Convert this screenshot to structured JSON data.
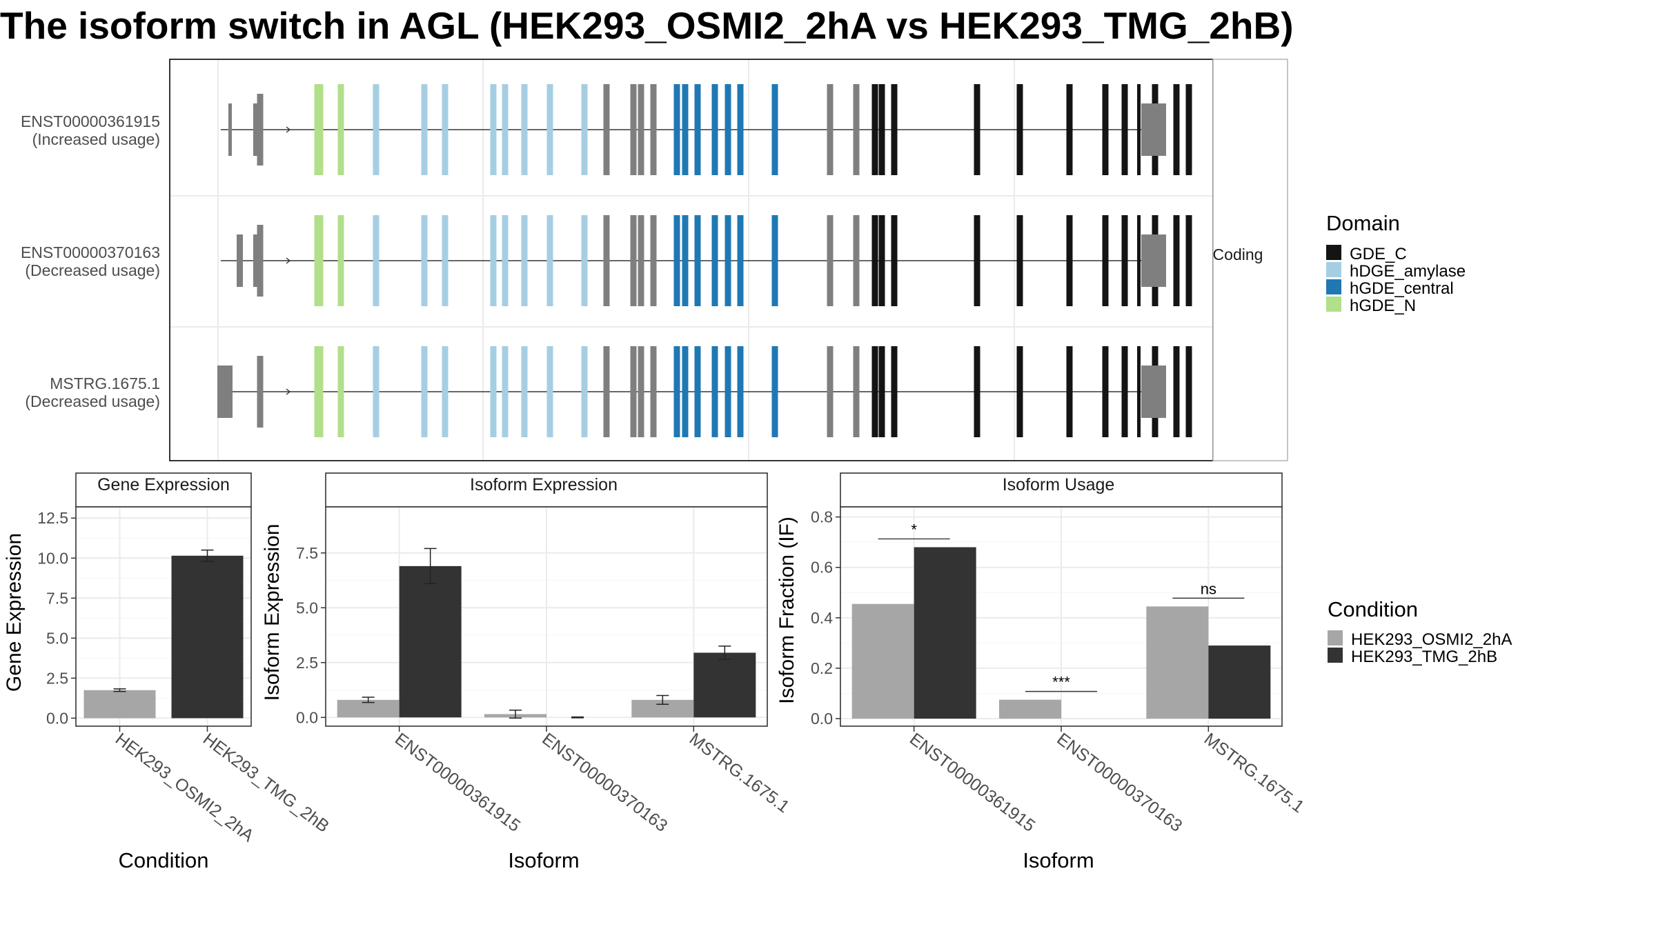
{
  "title": "The isoform switch in AGL (HEK293_OSMI2_2hA vs HEK293_TMG_2hB)",
  "colors": {
    "condition_a": "#a6a6a6",
    "condition_b": "#333333",
    "domain_GDE_C": "#141414",
    "domain_hDGE_amylase": "#a6cee3",
    "domain_hGDE_central": "#1f78b4",
    "domain_hGDE_N": "#b2df8a",
    "non_domain_exon": "#7f7f7f"
  },
  "legends": {
    "domain": {
      "title": "Domain",
      "items": [
        {
          "label": "GDE_C",
          "color_key": "domain_GDE_C"
        },
        {
          "label": "hDGE_amylase",
          "color_key": "domain_hDGE_amylase"
        },
        {
          "label": "hGDE_central",
          "color_key": "domain_hGDE_central"
        },
        {
          "label": "hGDE_N",
          "color_key": "domain_hGDE_N"
        }
      ]
    },
    "condition": {
      "title": "Condition",
      "items": [
        {
          "label": "HEK293_OSMI2_2hA",
          "color_key": "condition_a"
        },
        {
          "label": "HEK293_TMG_2hB",
          "color_key": "condition_b"
        }
      ]
    }
  },
  "chart_data": [
    {
      "type": "gene_structure",
      "strip_label": "Coding",
      "isoforms": [
        {
          "id": "ENST00000361915",
          "label": "ENST00000361915",
          "usage": "(Increased usage)",
          "first_exons": [
            "small",
            "medium"
          ]
        },
        {
          "id": "ENST00000370163",
          "label": "ENST00000370163",
          "usage": "(Decreased usage)",
          "first_exons": [
            "medium-small",
            "medium"
          ]
        },
        {
          "id": "MSTRG.1675.1",
          "label": "MSTRG.1675.1",
          "usage": "(Decreased usage)",
          "first_exons": [
            "wide"
          ]
        }
      ],
      "exon_domains": [
        "grey",
        "green",
        "green",
        "light",
        "light",
        "light",
        "light",
        "light",
        "light",
        "light",
        "light",
        "grey",
        "grey",
        "grey",
        "grey",
        "blue",
        "blue",
        "blue",
        "blue",
        "blue",
        "blue",
        "blue",
        "grey",
        "grey",
        "black",
        "black",
        "black",
        "black",
        "black",
        "black",
        "black",
        "black",
        "black",
        "black",
        "black",
        "black",
        "grey"
      ]
    },
    {
      "type": "bar",
      "title": "Gene Expression",
      "xlabel": "Condition",
      "ylabel": "Gene Expression",
      "categories": [
        "HEK293_OSMI2_2hA",
        "HEK293_TMG_2hB"
      ],
      "values": [
        1.75,
        10.15
      ],
      "errors": [
        0.08,
        0.35
      ],
      "ylim": [
        -0.5,
        13.2
      ],
      "yticks": [
        0.0,
        2.5,
        5.0,
        7.5,
        10.0,
        12.5
      ],
      "ytick_labels": [
        "0.0",
        "2.5",
        "5.0",
        "7.5",
        "10.0",
        "12.5"
      ],
      "grid": true
    },
    {
      "type": "bar",
      "title": "Isoform Expression",
      "xlabel": "Isoform",
      "ylabel": "Isoform Expression",
      "categories": [
        "ENST00000361915",
        "ENST00000370163",
        "MSTRG.1675.1"
      ],
      "series": [
        {
          "name": "HEK293_OSMI2_2hA",
          "values": [
            0.8,
            0.15,
            0.8
          ],
          "errors": [
            0.12,
            0.18,
            0.2
          ]
        },
        {
          "name": "HEK293_TMG_2hB",
          "values": [
            6.9,
            0.0,
            2.95
          ],
          "errors": [
            0.8,
            0.02,
            0.3
          ]
        }
      ],
      "ylim": [
        -0.4,
        9.6
      ],
      "yticks": [
        0.0,
        2.5,
        5.0,
        7.5
      ],
      "ytick_labels": [
        "0.0",
        "2.5",
        "5.0",
        "7.5"
      ],
      "grid": true
    },
    {
      "type": "bar",
      "title": "Isoform Usage",
      "xlabel": "Isoform",
      "ylabel": "Isoform Fraction (IF)",
      "categories": [
        "ENST00000361915",
        "ENST00000370163",
        "MSTRG.1675.1"
      ],
      "series": [
        {
          "name": "HEK293_OSMI2_2hA",
          "values": [
            0.455,
            0.075,
            0.445
          ]
        },
        {
          "name": "HEK293_TMG_2hB",
          "values": [
            0.68,
            0.0,
            0.29
          ]
        }
      ],
      "significance": [
        "*",
        "***",
        "ns"
      ],
      "ylim": [
        -0.03,
        0.84
      ],
      "yticks": [
        0.0,
        0.2,
        0.4,
        0.6,
        0.8
      ],
      "ytick_labels": [
        "0.0",
        "0.2",
        "0.4",
        "0.6",
        "0.8"
      ],
      "grid": true
    }
  ]
}
